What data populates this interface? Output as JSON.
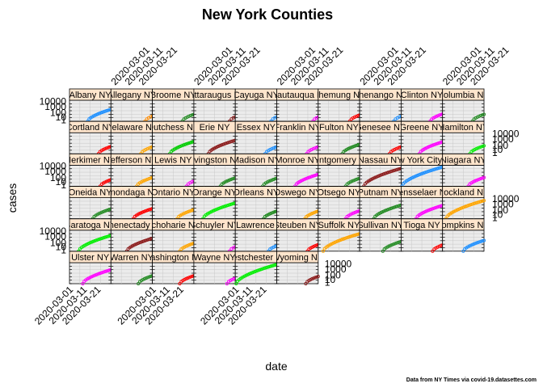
{
  "chart_data": {
    "type": "scatter",
    "title": "New York Counties",
    "xlabel": "date",
    "ylabel": "cases",
    "caption": "Data from NY Times via covid-19.datasettes.com",
    "x_ticks": [
      "2020-03-01",
      "2020-03-11",
      "2020-03-21"
    ],
    "y_ticks_top": [
      "10000",
      "1000",
      "100",
      "10",
      "1"
    ],
    "y_ticks": [
      "10000",
      "100",
      "1"
    ],
    "y_scale": "log",
    "x_range": [
      "2020-02-27",
      "2020-03-28"
    ],
    "ylim": [
      1,
      20000
    ],
    "grid": true,
    "rows": [
      {
        "panels": [
          {
            "name": "Albany NY",
            "color": "#1E90FF",
            "start": 0.44
          },
          {
            "name": "Allegany NY",
            "color": "#FF8C00",
            "start": 0.82
          },
          {
            "name": "Broome NY",
            "color": "#228B22",
            "start": 0.72
          },
          {
            "name": "Cattaraugus NY",
            "color": "#8B1A1A",
            "start": 0.86
          },
          {
            "name": "Cayuga NY",
            "color": "#1E90FF",
            "start": 0.86
          },
          {
            "name": "Chautauqua NY",
            "color": "#FF00FF",
            "start": 0.87
          },
          {
            "name": "Chemung NY",
            "color": "#FF0000",
            "start": 0.76
          },
          {
            "name": "Chenango NY",
            "color": "#1E90FF",
            "start": 0.82
          },
          {
            "name": "Clinton NY",
            "color": "#FF00FF",
            "start": 0.7
          },
          {
            "name": "Columbia NY",
            "color": "#228B22",
            "start": 0.72
          }
        ]
      },
      {
        "panels": [
          {
            "name": "Cortland NY",
            "color": "#FF0000",
            "start": 0.7
          },
          {
            "name": "Delaware NY",
            "color": "#FFA500",
            "start": 0.72
          },
          {
            "name": "Dutchess NY",
            "color": "#00CC00",
            "start": 0.42
          },
          {
            "name": "Erie NY",
            "color": "#8B1A1A",
            "start": 0.35
          },
          {
            "name": "Essex NY",
            "color": "#1E90FF",
            "start": 0.72
          },
          {
            "name": "Franklin NY",
            "color": "#FF00FF",
            "start": 0.72
          },
          {
            "name": "Fulton NY",
            "color": "#228B22",
            "start": 0.58
          },
          {
            "name": "Genesee NY",
            "color": "#FF0000",
            "start": 0.72
          },
          {
            "name": "Greene NY",
            "color": "#FF00FF",
            "start": 0.44
          },
          {
            "name": "Hamilton NY",
            "color": "#00EE00",
            "start": 0.66
          }
        ]
      },
      {
        "panels": [
          {
            "name": "Herkimer NY",
            "color": "#FF0000",
            "start": 0.74
          },
          {
            "name": "Jefferson NY",
            "color": "#FFA500",
            "start": 0.62
          },
          {
            "name": "Lewis NY",
            "color": "#FF00FF",
            "start": 0.82
          },
          {
            "name": "Livingston NY",
            "color": "#228B22",
            "start": 0.64
          },
          {
            "name": "Madison NY",
            "color": "#228B22",
            "start": 0.66
          },
          {
            "name": "Monroe NY",
            "color": "#FF00FF",
            "start": 0.44
          },
          {
            "name": "Montgomery NY",
            "color": "#228B22",
            "start": 0.66
          },
          {
            "name": "Nassau NY",
            "color": "#8B1A1A",
            "start": 0.1
          },
          {
            "name": "New York City NY",
            "color": "#1E90FF",
            "start": 0.02
          },
          {
            "name": "Niagara NY",
            "color": "#FF00FF",
            "start": 0.62
          }
        ]
      },
      {
        "panels": [
          {
            "name": "Oneida NY",
            "color": "#228B22",
            "start": 0.56
          },
          {
            "name": "Onondaga NY",
            "color": "#FF0000",
            "start": 0.54
          },
          {
            "name": "Ontario NY",
            "color": "#FFA500",
            "start": 0.6
          },
          {
            "name": "Orange NY",
            "color": "#00EE00",
            "start": 0.22
          },
          {
            "name": "Orleans NY",
            "color": "#228B22",
            "start": 0.68
          },
          {
            "name": "Oswego NY",
            "color": "#FFA500",
            "start": 0.68
          },
          {
            "name": "Otsego NY",
            "color": "#FF00FF",
            "start": 0.66
          },
          {
            "name": "Putnam NY",
            "color": "#228B22",
            "start": 0.34
          },
          {
            "name": "Rensselaer NY",
            "color": "#FF00FF",
            "start": 0.36
          },
          {
            "name": "Rockland NY",
            "color": "#FFA500",
            "start": 0.08
          }
        ]
      },
      {
        "panels": [
          {
            "name": "Saratoga NY",
            "color": "#00EE00",
            "start": 0.22
          },
          {
            "name": "Schenectady NY",
            "color": "#8B1A1A",
            "start": 0.38
          },
          {
            "name": "Schoharie NY",
            "color": "#FFA500",
            "start": 0.66
          },
          {
            "name": "Schuyler NY",
            "color": "#FF00FF",
            "start": 0.86
          },
          {
            "name": "St. Lawrence NY",
            "color": "#1E90FF",
            "start": 0.8
          },
          {
            "name": "Steuben NY",
            "color": "#FF0000",
            "start": 0.74
          },
          {
            "name": "Suffolk NY",
            "color": "#FFA500",
            "start": 0.12
          },
          {
            "name": "Sullivan NY",
            "color": "#228B22",
            "start": 0.56
          },
          {
            "name": "Tioga NY",
            "color": "#FF0000",
            "start": 0.76
          },
          {
            "name": "Tompkins NY",
            "color": "#1E90FF",
            "start": 0.5
          }
        ]
      },
      {
        "panels": [
          {
            "name": "Ulster NY",
            "color": "#FF00FF",
            "start": 0.32
          },
          {
            "name": "Warren NY",
            "color": "#228B22",
            "start": 0.66
          },
          {
            "name": "Washington NY",
            "color": "#FF0000",
            "start": 0.66
          },
          {
            "name": "Wayne NY",
            "color": "#FF00FF",
            "start": 0.8
          },
          {
            "name": "Westchester NY",
            "color": "#00EE00",
            "start": 0.02
          },
          {
            "name": "Wyoming NY",
            "color": "#8B1A1A",
            "start": 0.7
          }
        ]
      }
    ]
  }
}
